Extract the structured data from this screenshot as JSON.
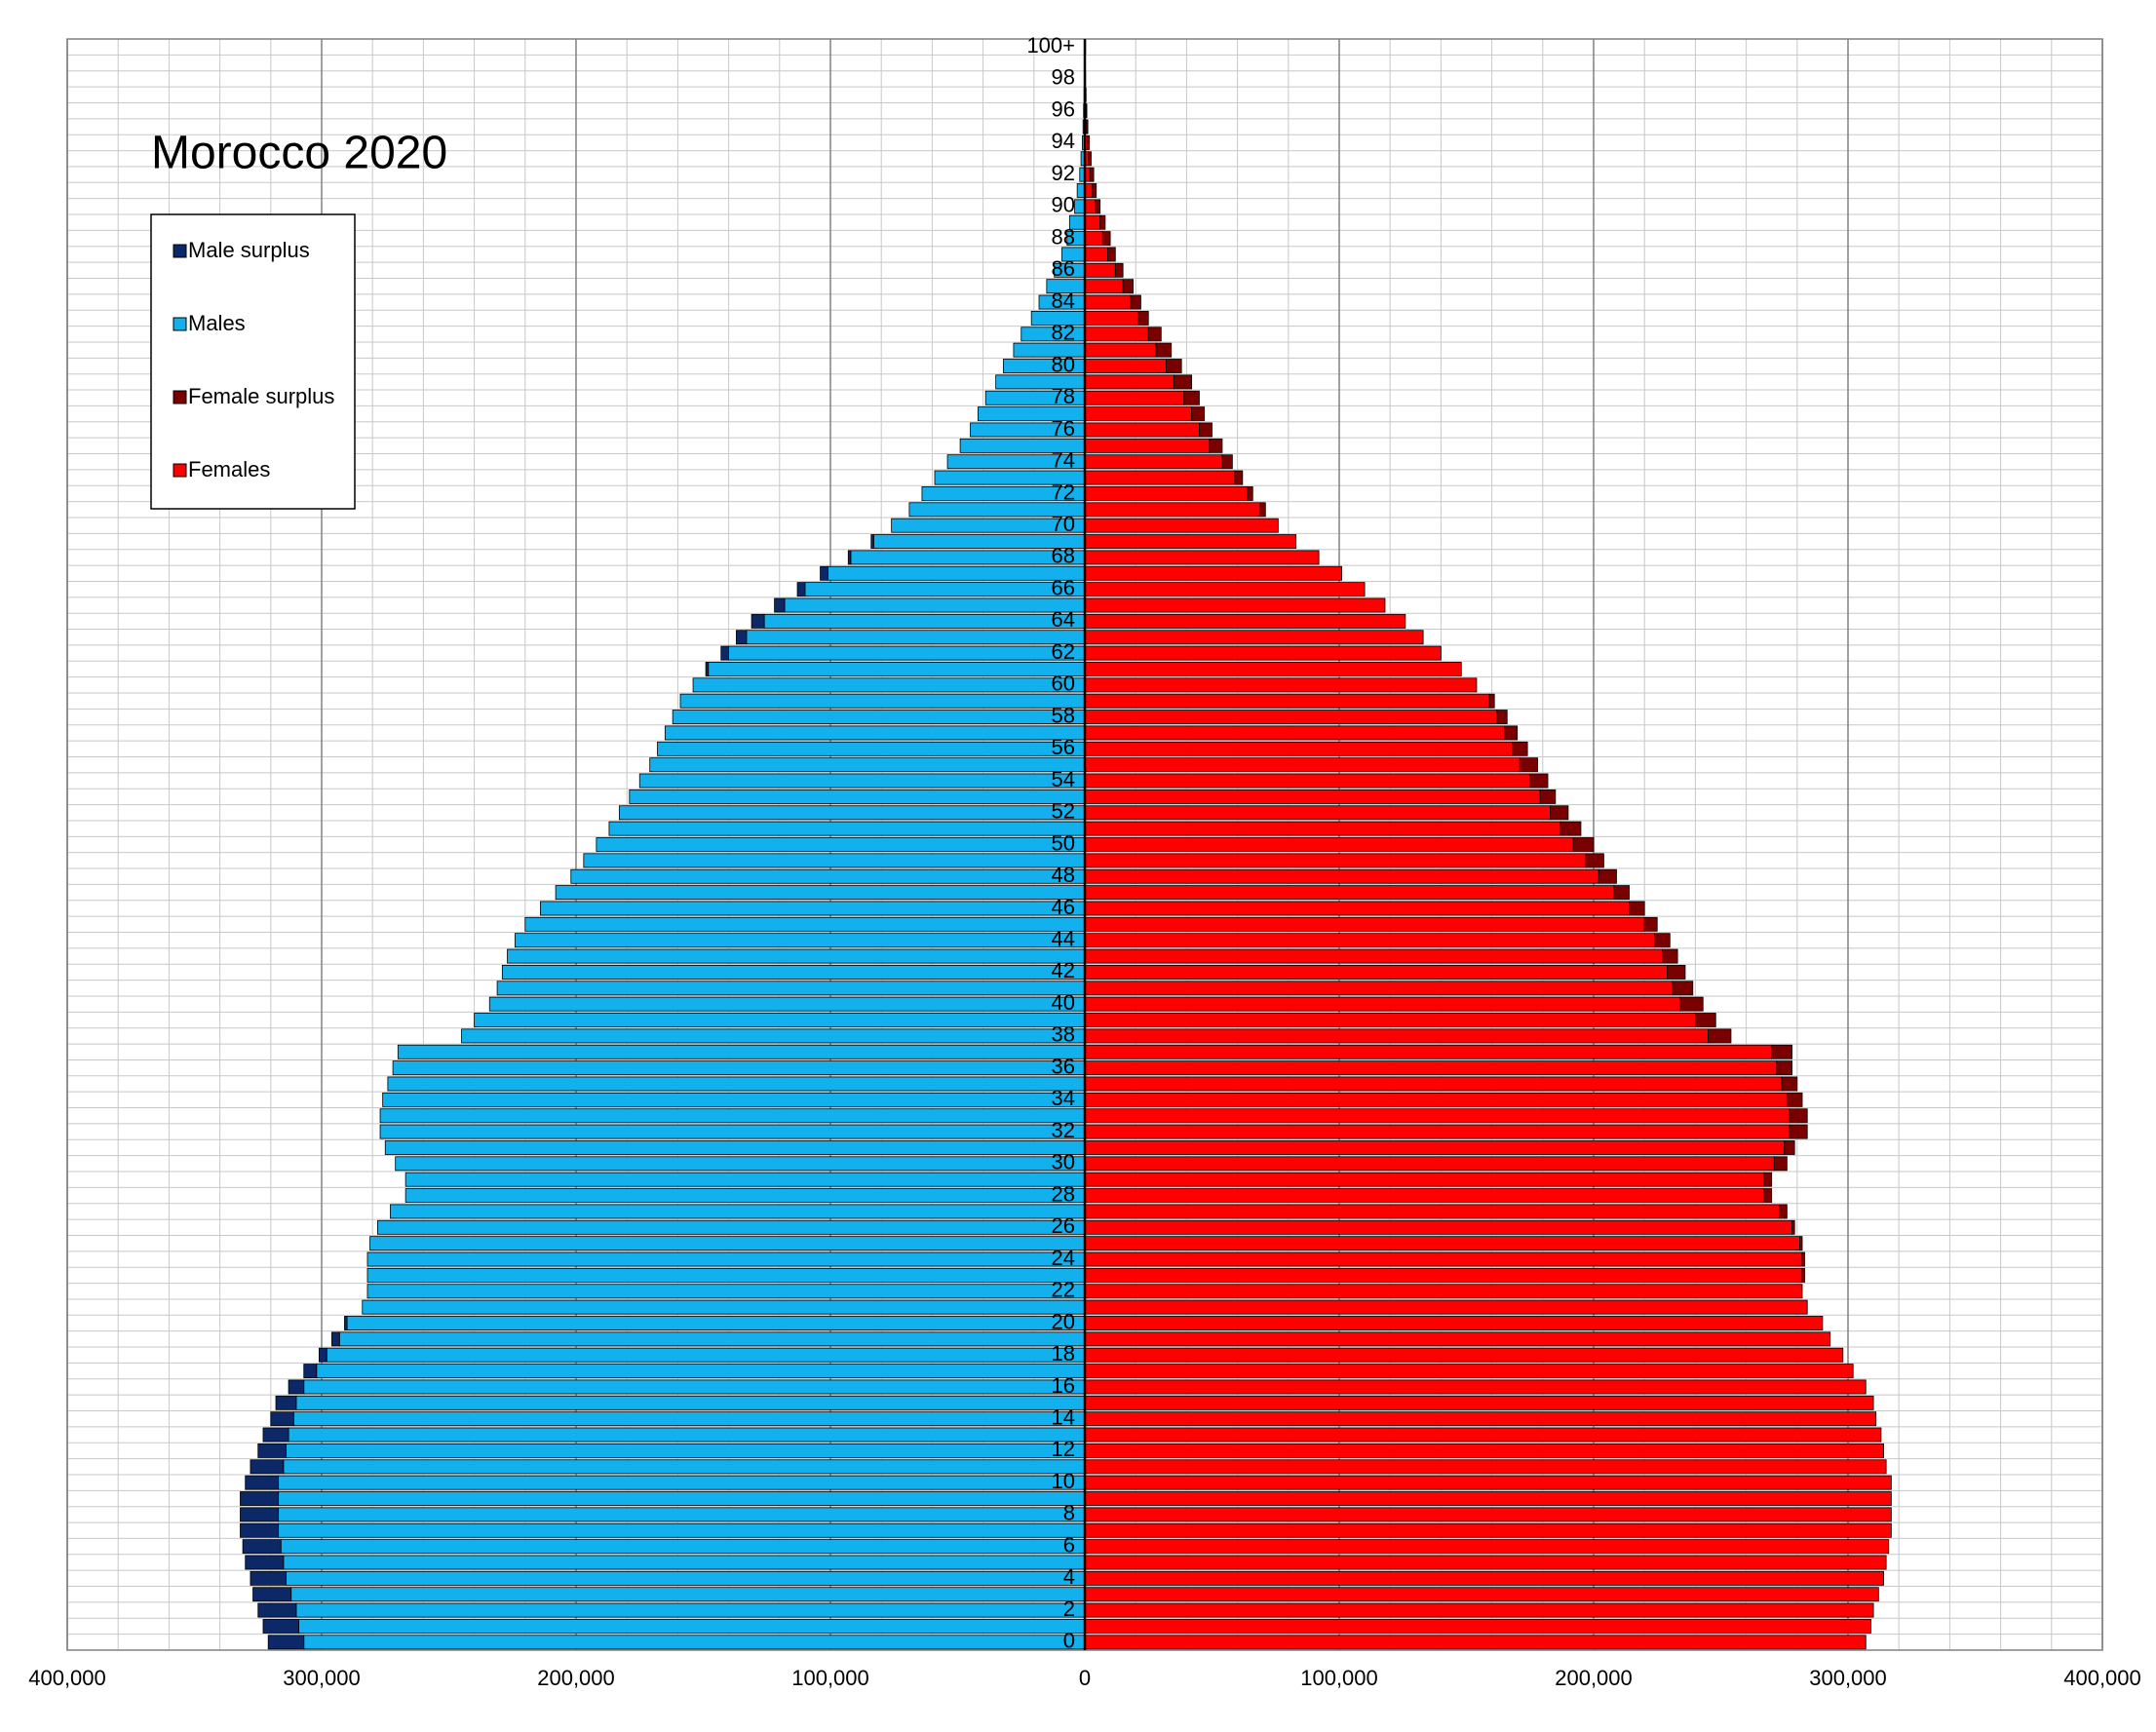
{
  "chart_data": {
    "type": "pyramid",
    "title": "Morocco 2020",
    "categories": [
      "0",
      null,
      "2",
      null,
      "4",
      null,
      "6",
      null,
      "8",
      null,
      "10",
      null,
      "12",
      null,
      "14",
      null,
      "16",
      null,
      "18",
      null,
      "20",
      null,
      "22",
      null,
      "24",
      null,
      "26",
      null,
      "28",
      null,
      "30",
      null,
      "32",
      null,
      "34",
      null,
      "36",
      null,
      "38",
      null,
      "40",
      null,
      "42",
      null,
      "44",
      null,
      "46",
      null,
      "48",
      null,
      "50",
      null,
      "52",
      null,
      "54",
      null,
      "56",
      null,
      "58",
      null,
      "60",
      null,
      "62",
      null,
      "64",
      null,
      "66",
      null,
      "68",
      null,
      "70",
      null,
      "72",
      null,
      "74",
      null,
      "76",
      null,
      "78",
      null,
      "80",
      null,
      "82",
      null,
      "84",
      null,
      "86",
      null,
      "88",
      null,
      "90",
      null,
      "92",
      null,
      "94",
      null,
      "96",
      null,
      "98",
      null,
      "100+"
    ],
    "series": [
      {
        "name": "Male surplus",
        "color": "#0c2866",
        "values": [
          14000,
          14000,
          15000,
          15000,
          14000,
          15000,
          15000,
          15000,
          15000,
          15000,
          13000,
          13000,
          11000,
          10000,
          9000,
          8000,
          6000,
          5000,
          3000,
          3000,
          1000,
          0,
          0,
          0,
          0,
          0,
          0,
          0,
          0,
          0,
          0,
          0,
          0,
          0,
          0,
          0,
          0,
          0,
          0,
          0,
          0,
          0,
          0,
          0,
          0,
          0,
          0,
          0,
          0,
          0,
          0,
          0,
          0,
          0,
          0,
          0,
          0,
          0,
          0,
          0,
          0,
          1000,
          3000,
          4000,
          5000,
          4000,
          3000,
          3000,
          1000,
          1000,
          0,
          0,
          0,
          0,
          0,
          0,
          0,
          0,
          0,
          0,
          0,
          0,
          0,
          0,
          0,
          0,
          0,
          0,
          0,
          0,
          0,
          0,
          0,
          0,
          0,
          0,
          0,
          0,
          0,
          0,
          0
        ]
      },
      {
        "name": "Males",
        "color": "#12b0ec",
        "values": [
          307000,
          309000,
          310000,
          312000,
          314000,
          315000,
          316000,
          317000,
          317000,
          317000,
          317000,
          315000,
          314000,
          313000,
          311000,
          310000,
          307000,
          302000,
          298000,
          293000,
          290000,
          284000,
          282000,
          282000,
          282000,
          281000,
          278000,
          273000,
          267000,
          267000,
          271000,
          275000,
          277000,
          277000,
          276000,
          274000,
          272000,
          270000,
          245000,
          240000,
          234000,
          231000,
          229000,
          227000,
          224000,
          220000,
          214000,
          208000,
          202000,
          197000,
          192000,
          187000,
          183000,
          179000,
          175000,
          171000,
          168000,
          165000,
          162000,
          159000,
          154000,
          148000,
          140000,
          133000,
          126000,
          118000,
          110000,
          101000,
          92000,
          83000,
          76000,
          69000,
          64000,
          59000,
          54000,
          49000,
          45000,
          42000,
          39000,
          35000,
          32000,
          28000,
          25000,
          21000,
          18000,
          15000,
          12000,
          9000,
          7000,
          6000,
          4000,
          3000,
          2000,
          1500,
          1000,
          700,
          500,
          300,
          200,
          100,
          100
        ]
      },
      {
        "name": "Female surplus",
        "color": "#7a0000",
        "values": [
          0,
          0,
          0,
          0,
          0,
          0,
          0,
          0,
          0,
          0,
          0,
          0,
          0,
          0,
          0,
          0,
          0,
          0,
          0,
          0,
          0,
          0,
          0,
          1000,
          1000,
          1000,
          1000,
          3000,
          3000,
          3000,
          5000,
          4000,
          7000,
          7000,
          6000,
          6000,
          6000,
          8000,
          9000,
          8000,
          9000,
          8000,
          7000,
          6000,
          6000,
          5000,
          6000,
          6000,
          7000,
          7000,
          8000,
          8000,
          7000,
          6000,
          7000,
          7000,
          6000,
          5000,
          4000,
          2000,
          0,
          0,
          0,
          0,
          0,
          0,
          0,
          0,
          0,
          0,
          0,
          2000,
          2000,
          3000,
          4000,
          5000,
          5000,
          5000,
          6000,
          7000,
          6000,
          6000,
          5000,
          4000,
          4000,
          4000,
          3000,
          3000,
          3000,
          2000,
          2000,
          1500,
          1500,
          1000,
          800,
          500,
          300,
          200,
          100,
          100,
          200
        ]
      },
      {
        "name": "Females",
        "color": "#ff0000",
        "values": [
          307000,
          309000,
          310000,
          312000,
          314000,
          315000,
          316000,
          317000,
          317000,
          317000,
          317000,
          315000,
          314000,
          313000,
          311000,
          310000,
          307000,
          302000,
          298000,
          293000,
          290000,
          284000,
          282000,
          282000,
          282000,
          281000,
          278000,
          273000,
          267000,
          267000,
          271000,
          275000,
          277000,
          277000,
          276000,
          274000,
          272000,
          270000,
          245000,
          240000,
          234000,
          231000,
          229000,
          227000,
          224000,
          220000,
          214000,
          208000,
          202000,
          197000,
          192000,
          187000,
          183000,
          179000,
          175000,
          171000,
          168000,
          165000,
          162000,
          159000,
          154000,
          148000,
          140000,
          133000,
          126000,
          118000,
          110000,
          101000,
          92000,
          83000,
          76000,
          69000,
          64000,
          59000,
          54000,
          49000,
          45000,
          42000,
          39000,
          35000,
          32000,
          28000,
          25000,
          21000,
          18000,
          15000,
          12000,
          9000,
          7000,
          6000,
          4000,
          3000,
          2000,
          1500,
          1000,
          700,
          500,
          300,
          200,
          100,
          100
        ]
      }
    ],
    "xlim": [
      -400000,
      400000
    ],
    "xticks": [
      {
        "value": -400000,
        "label": "400,000"
      },
      {
        "value": -300000,
        "label": "300,000"
      },
      {
        "value": -200000,
        "label": "200,000"
      },
      {
        "value": -100000,
        "label": "100,000"
      },
      0,
      {
        "value": 100000,
        "label": "100,000"
      },
      {
        "value": 200000,
        "label": "200,000"
      },
      {
        "value": 300000,
        "label": "300,000"
      },
      {
        "value": 400000,
        "label": "400,000"
      }
    ],
    "grid": true,
    "legend": "upper left"
  }
}
